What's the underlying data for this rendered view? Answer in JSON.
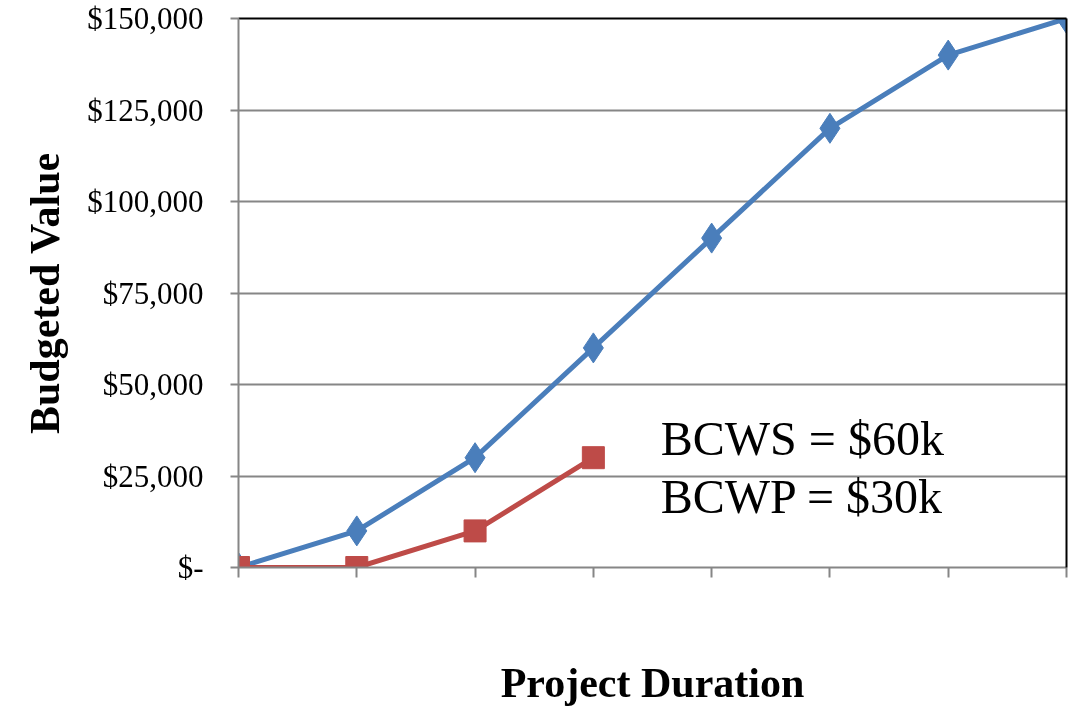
{
  "chart_data": {
    "type": "line",
    "xlabel": "Project Duration",
    "ylabel": "Budgeted Value",
    "categories": [
      null,
      null,
      null,
      null,
      null,
      null,
      null,
      null
    ],
    "series": [
      {
        "color": "#4a7ebb",
        "marker": "diamond",
        "values": [
          0,
          10000,
          30000,
          60000,
          90000,
          120000,
          140000,
          150000
        ]
      },
      {
        "color": "#be4b48",
        "marker": "square",
        "values": [
          0,
          0,
          10000,
          30000,
          null,
          null,
          null,
          null
        ]
      }
    ],
    "ylim": [
      0,
      150000
    ],
    "yticks": [
      {
        "value": 0,
        "label": "$-"
      },
      {
        "value": 25000,
        "label": "$25,000"
      },
      {
        "value": 50000,
        "label": "$50,000"
      },
      {
        "value": 75000,
        "label": "$75,000"
      },
      {
        "value": 100000,
        "label": "$100,000"
      },
      {
        "value": 125000,
        "label": "$125,000"
      },
      {
        "value": 150000,
        "label": "$150,000"
      }
    ],
    "grid": "y",
    "tick_labels": "y",
    "annotations": [
      "BCWS = $60k",
      "BCWP = $30k"
    ]
  }
}
